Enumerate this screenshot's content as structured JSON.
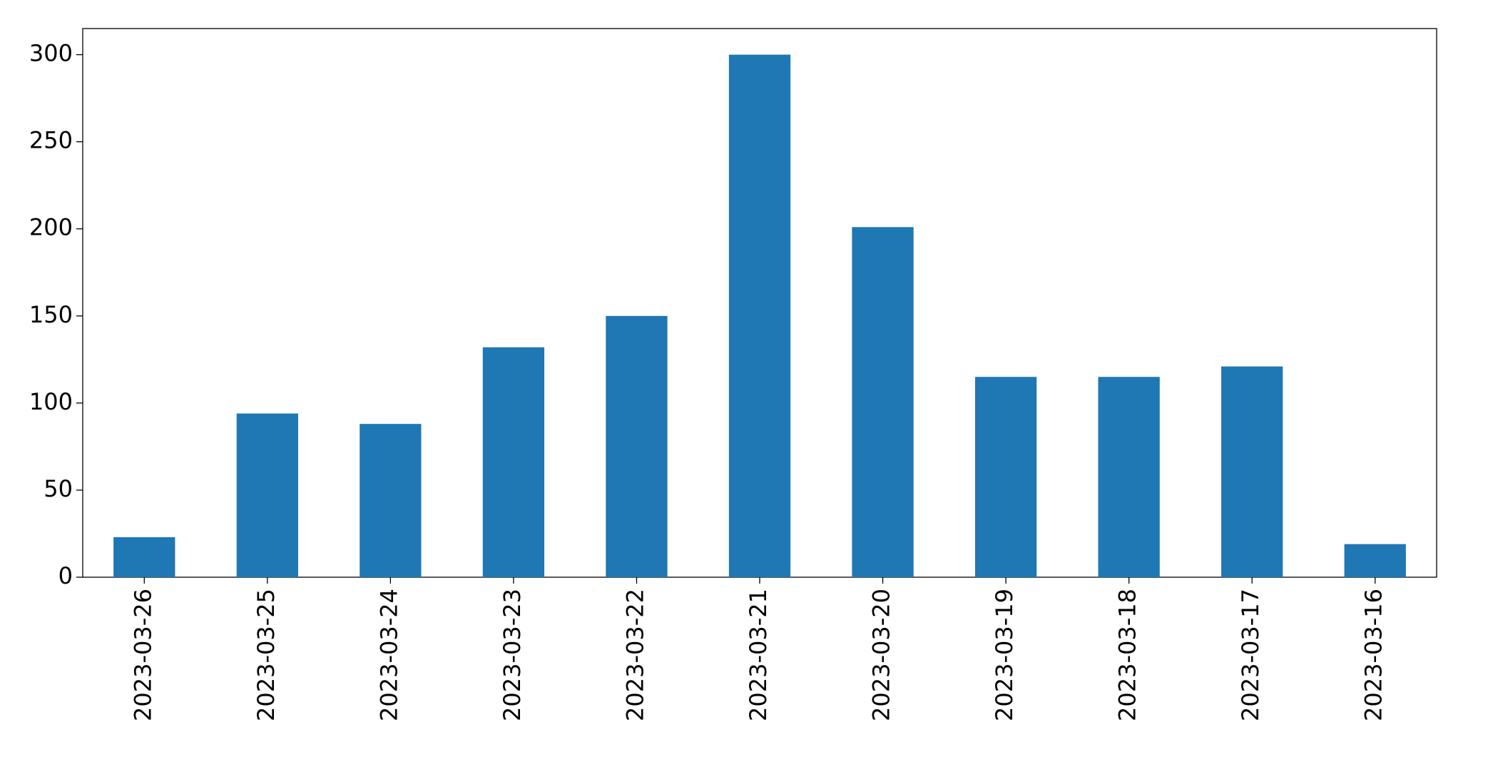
{
  "chart_data": {
    "type": "bar",
    "categories": [
      "2023-03-26",
      "2023-03-25",
      "2023-03-24",
      "2023-03-23",
      "2023-03-22",
      "2023-03-21",
      "2023-03-20",
      "2023-03-19",
      "2023-03-18",
      "2023-03-17",
      "2023-03-16"
    ],
    "values": [
      23,
      94,
      88,
      132,
      150,
      300,
      201,
      115,
      115,
      121,
      19
    ],
    "color": "#1f77b4",
    "ylim": [
      0,
      315
    ],
    "yticks": [
      0,
      50,
      100,
      150,
      200,
      250,
      300
    ],
    "grid": false
  }
}
